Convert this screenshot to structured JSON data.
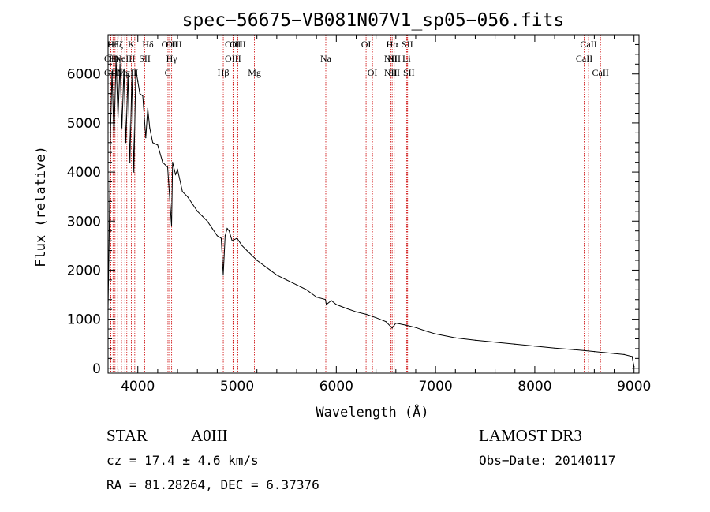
{
  "chart_data": {
    "type": "line",
    "title": "spec−56675−VB081N07V1_sp05−056.fits",
    "xlabel": "Wavelength (Å)",
    "ylabel": "Flux (relative)",
    "xlim": [
      3700,
      9050
    ],
    "ylim": [
      -100,
      6800
    ],
    "x_ticks": [
      4000,
      5000,
      6000,
      7000,
      8000,
      9000
    ],
    "y_ticks": [
      0,
      1000,
      2000,
      3000,
      4000,
      5000,
      6000
    ],
    "x_tick_labels": [
      "4000",
      "5000",
      "6000",
      "7000",
      "8000",
      "9000"
    ],
    "y_tick_labels": [
      "0",
      "1000",
      "2000",
      "3000",
      "4000",
      "5000",
      "6000"
    ],
    "line_color": "#000000",
    "marker_color": "#cc0000",
    "series": [
      {
        "name": "spectrum",
        "x": [
          3700,
          3710,
          3725,
          3740,
          3760,
          3780,
          3800,
          3820,
          3840,
          3860,
          3880,
          3900,
          3920,
          3940,
          3960,
          3980,
          4000,
          4020,
          4050,
          4080,
          4100,
          4120,
          4150,
          4200,
          4250,
          4300,
          4340,
          4350,
          4380,
          4400,
          4450,
          4500,
          4550,
          4600,
          4650,
          4700,
          4750,
          4800,
          4840,
          4861,
          4880,
          4900,
          4920,
          4950,
          5000,
          5050,
          5100,
          5200,
          5300,
          5400,
          5500,
          5600,
          5700,
          5800,
          5890,
          5900,
          5950,
          6000,
          6100,
          6200,
          6300,
          6400,
          6500,
          6563,
          6600,
          6700,
          6800,
          6900,
          7000,
          7200,
          7400,
          7600,
          7800,
          8000,
          8200,
          8400,
          8500,
          8600,
          8700,
          8800,
          8900,
          8980,
          9000
        ],
        "y": [
          1200,
          2600,
          4800,
          6050,
          4700,
          6300,
          5100,
          6200,
          4900,
          6100,
          4600,
          6000,
          4200,
          5950,
          4000,
          6100,
          5850,
          5600,
          5550,
          4700,
          5300,
          4900,
          4600,
          4550,
          4200,
          4100,
          2900,
          4200,
          3950,
          4050,
          3600,
          3500,
          3350,
          3200,
          3100,
          3000,
          2850,
          2700,
          2650,
          1900,
          2700,
          2850,
          2800,
          2600,
          2650,
          2500,
          2400,
          2200,
          2050,
          1900,
          1800,
          1700,
          1600,
          1450,
          1400,
          1300,
          1380,
          1300,
          1220,
          1150,
          1100,
          1030,
          950,
          820,
          920,
          880,
          830,
          760,
          700,
          620,
          570,
          530,
          490,
          450,
          410,
          380,
          360,
          340,
          320,
          300,
          280,
          240,
          30
        ]
      }
    ],
    "lines": [
      {
        "name": "OII",
        "x": 3727,
        "label_row": 2
      },
      {
        "name": "Hθ",
        "x": 3750,
        "label_row": 0
      },
      {
        "name": "OII",
        "x": 3727,
        "label_row": 1
      },
      {
        "name": "Hη",
        "x": 3770,
        "label_row": 1
      },
      {
        "name": "Hζ",
        "x": 3797,
        "label_row": 0
      },
      {
        "name": "Hε",
        "x": 3835,
        "label_row": 2
      },
      {
        "name": "NeIII",
        "x": 3869,
        "label_row": 1
      },
      {
        "name": "MgII",
        "x": 3889,
        "label_row": 2
      },
      {
        "name": "K",
        "x": 3934,
        "label_row": 0
      },
      {
        "name": "H",
        "x": 3969,
        "label_row": 2
      },
      {
        "name": "SII",
        "x": 4070,
        "label_row": 1
      },
      {
        "name": "Hδ",
        "x": 4102,
        "label_row": 0
      },
      {
        "name": "OIII",
        "x": 4320,
        "label_row": 0
      },
      {
        "name": "Hγ",
        "x": 4341,
        "label_row": 1
      },
      {
        "name": "G",
        "x": 4304,
        "label_row": 2
      },
      {
        "name": "OIII",
        "x": 4363,
        "label_row": 0
      },
      {
        "name": "Hβ",
        "x": 4861,
        "label_row": 2
      },
      {
        "name": "OIII",
        "x": 4959,
        "label_row": 0
      },
      {
        "name": "OIII",
        "x": 4959,
        "label_row": 1
      },
      {
        "name": "OIII",
        "x": 5007,
        "label_row": 0
      },
      {
        "name": "Mg",
        "x": 5175,
        "label_row": 2
      },
      {
        "name": "Na",
        "x": 5894,
        "label_row": 1
      },
      {
        "name": "OI",
        "x": 6300,
        "label_row": 0
      },
      {
        "name": "OI",
        "x": 6364,
        "label_row": 2
      },
      {
        "name": "NII",
        "x": 6548,
        "label_row": 1
      },
      {
        "name": "NII",
        "x": 6548,
        "label_row": 2
      },
      {
        "name": "Hα",
        "x": 6563,
        "label_row": 0
      },
      {
        "name": "NII",
        "x": 6583,
        "label_row": 1
      },
      {
        "name": "SII",
        "x": 6583,
        "label_row": 2
      },
      {
        "name": "SII",
        "x": 6716,
        "label_row": 0
      },
      {
        "name": "Li",
        "x": 6708,
        "label_row": 1
      },
      {
        "name": "SII",
        "x": 6731,
        "label_row": 2
      },
      {
        "name": "CaII",
        "x": 8498,
        "label_row": 1
      },
      {
        "name": "CaII",
        "x": 8542,
        "label_row": 0
      },
      {
        "name": "CaII",
        "x": 8662,
        "label_row": 2
      }
    ]
  },
  "info": {
    "object_class": "STAR",
    "subclass": "A0III",
    "survey": "LAMOST DR3",
    "redshift": "cz = 17.4 ± 4.6 km/s",
    "obs_date": "Obs−Date: 20140117",
    "coords": "RA =  81.28264, DEC =   6.37376"
  }
}
